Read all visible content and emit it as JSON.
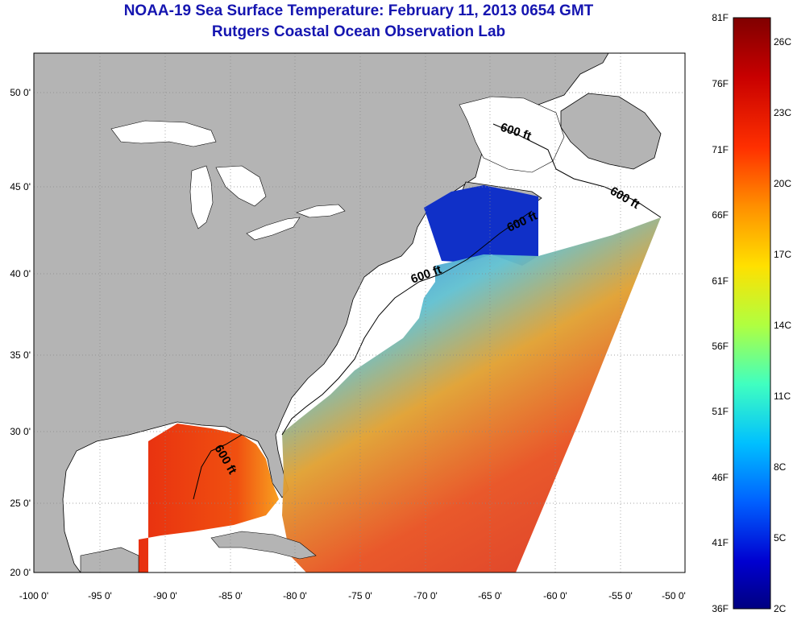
{
  "title": "NOAA-19 Sea Surface Temperature:  February 11, 2013 0654 GMT",
  "subtitle": "Rutgers Coastal Ocean Observation Lab",
  "colors": {
    "land": "#b4b4b4",
    "shelf_water": "#ffffff",
    "title": "#1515b0",
    "grid": "#888888"
  },
  "axes": {
    "lon_ticks": [
      "-100 0'",
      "-95 0'",
      "-90 0'",
      "-85 0'",
      "-80 0'",
      "-75 0'",
      "-70 0'",
      "-65 0'",
      "-60 0'",
      "-55 0'",
      "-50 0'"
    ],
    "lat_ticks": [
      "50 0'",
      "45 0'",
      "40 0'",
      "35 0'",
      "30 0'",
      "25 0'",
      "20 0'"
    ]
  },
  "contour_label": "600 ft",
  "colorbar": {
    "fahrenheit_labels": [
      "81F",
      "76F",
      "71F",
      "66F",
      "61F",
      "56F",
      "51F",
      "46F",
      "41F",
      "36F"
    ],
    "celsius_labels": [
      "26C",
      "23C",
      "20C",
      "17C",
      "14C",
      "11C",
      "8C",
      "5C",
      "2C"
    ],
    "gradient": [
      "#800000",
      "#c80000",
      "#ff3000",
      "#ff9000",
      "#ffe000",
      "#b0ff40",
      "#40ffc0",
      "#00c0ff",
      "#0060ff",
      "#0000d0",
      "#000080"
    ]
  }
}
